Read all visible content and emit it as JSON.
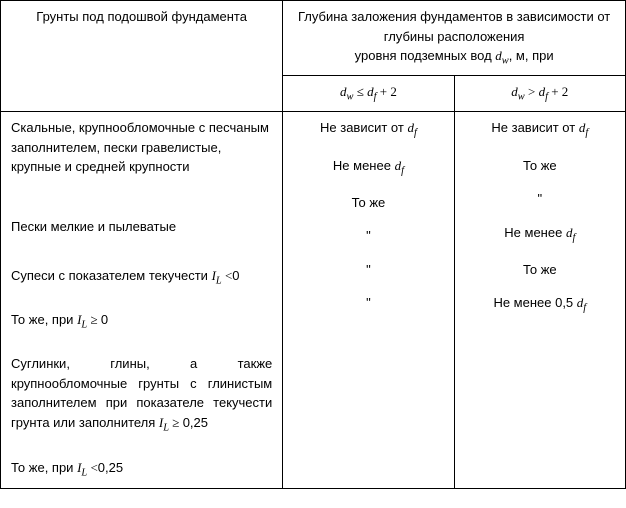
{
  "header": {
    "left": "Грунты под подошвой фундамента",
    "right_top_a": "Глубина заложения фундаментов в зависимости от глубины расположения",
    "right_top_b": "уровня подземных вод ",
    "right_top_c": ", м, при"
  },
  "math": {
    "dw": "d",
    "dw_sub": "w",
    "df": "d",
    "df_sub": "f",
    "IL": "I",
    "IL_sub": "L",
    "le": " ≤ ",
    "gt": " > ",
    "ge": " ≥ ",
    "lt": " <",
    "plus2": " + 2"
  },
  "col": {
    "c1": "Скальные, крупнообломочные с песчаным заполнителем, пески гравелистые, крупные и средней крупности",
    "c2": "Пески мелкие и пылеватые",
    "c3_a": "Супеси с показателем текучести ",
    "c3_b": "0",
    "c4_a": "То же, при ",
    "c4_b": "0",
    "c5": "Суглинки, глины, а также крупнообломочные грунты с глинистым заполнителем при показателе текучести",
    "c5_line2_a": "грунта или заполнителя ",
    "c5_line2_b": "0,25",
    "c6_a": "То же, при ",
    "c6_b": "0,25"
  },
  "cell": {
    "nodep_a": "Не зависит от ",
    "nomenee_a": "Не менее ",
    "nomenee05_a": "Не менее 0,5 ",
    "same": "То же",
    "ditto": "\""
  }
}
